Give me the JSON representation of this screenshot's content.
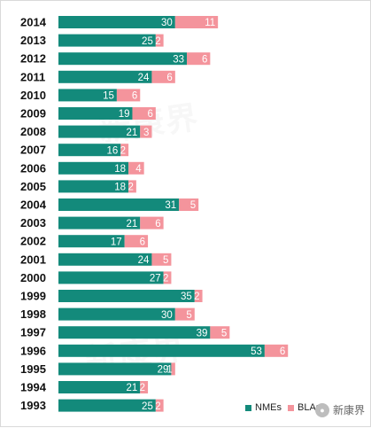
{
  "chart_data": {
    "type": "bar",
    "orientation": "horizontal",
    "stacked": true,
    "categories": [
      "2014",
      "2013",
      "2012",
      "2011",
      "2010",
      "2009",
      "2008",
      "2007",
      "2006",
      "2005",
      "2004",
      "2003",
      "2002",
      "2001",
      "2000",
      "1999",
      "1998",
      "1997",
      "1996",
      "1995",
      "1994",
      "1993"
    ],
    "series": [
      {
        "name": "NMEs",
        "color": "#138a7b",
        "values": [
          30,
          25,
          33,
          24,
          15,
          19,
          21,
          16,
          18,
          18,
          31,
          21,
          17,
          24,
          27,
          35,
          30,
          39,
          53,
          29,
          21,
          25
        ]
      },
      {
        "name": "BLAs",
        "color": "#f4949c",
        "values": [
          11,
          2,
          6,
          6,
          6,
          6,
          3,
          2,
          4,
          2,
          5,
          6,
          6,
          5,
          2,
          2,
          5,
          5,
          6,
          1,
          2,
          2
        ]
      }
    ],
    "xlim": [
      0,
      66
    ],
    "grid": false,
    "legend_position": "bottom-right",
    "data_labels": true
  },
  "legend": {
    "nmes_label": "NMEs",
    "blas_label": "BLAs"
  },
  "brand": {
    "text": "新康界",
    "icon": "wechat-icon"
  },
  "watermark": {
    "text": "新康界"
  }
}
